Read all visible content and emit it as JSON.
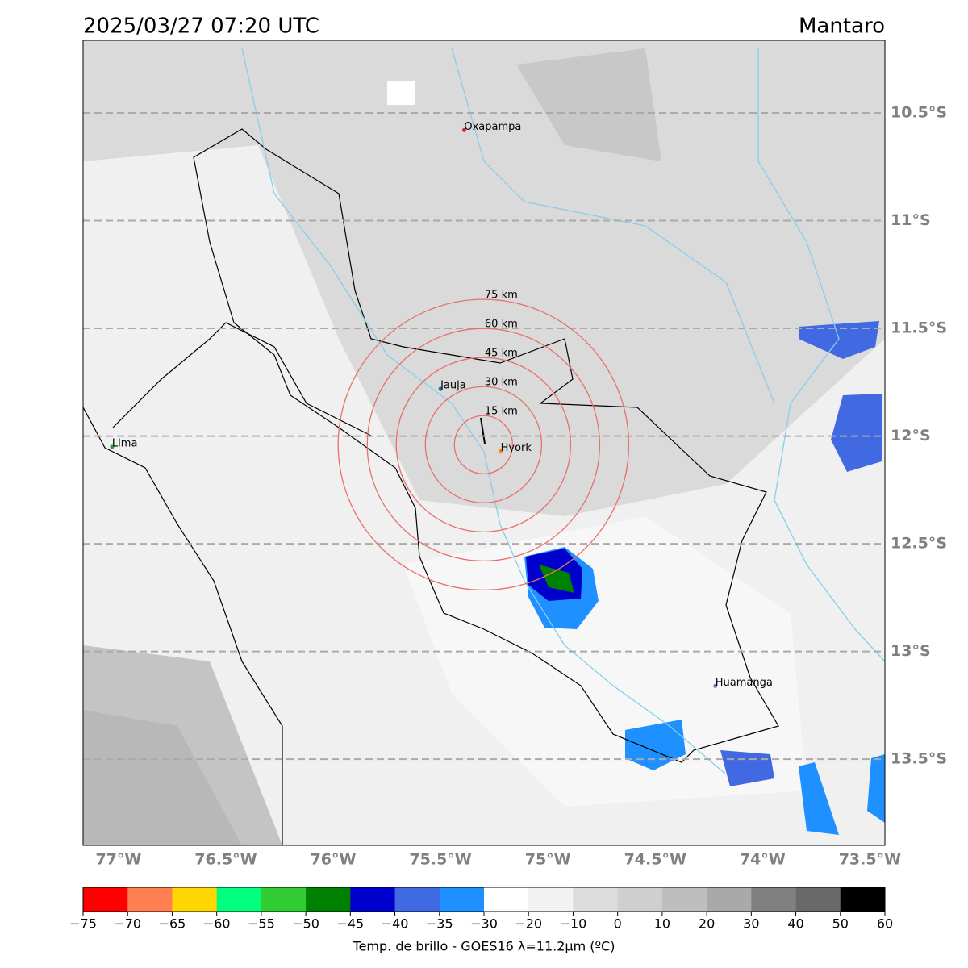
{
  "header": {
    "title": "2025/03/27 07:20 UTC",
    "region": "Mantaro"
  },
  "map": {
    "extent": {
      "lon": [
        -77.165,
        -73.43
      ],
      "lat": [
        -13.9,
        -10.163
      ]
    },
    "lat_ticks": [
      {
        "value": -10.5,
        "label": "10.5°S"
      },
      {
        "value": -11,
        "label": "11°S"
      },
      {
        "value": -11.5,
        "label": "11.5°S"
      },
      {
        "value": -12,
        "label": "12°S"
      },
      {
        "value": -12.5,
        "label": "12.5°S"
      },
      {
        "value": -13,
        "label": "13°S"
      },
      {
        "value": -13.5,
        "label": "13.5°S"
      }
    ],
    "lon_ticks": [
      {
        "value": -77,
        "label": "77°W"
      },
      {
        "value": -76.5,
        "label": "76.5°W"
      },
      {
        "value": -76,
        "label": "76°W"
      },
      {
        "value": -75.5,
        "label": "75.5°W"
      },
      {
        "value": -75,
        "label": "75°W"
      },
      {
        "value": -74.5,
        "label": "74.5°W"
      },
      {
        "value": -74,
        "label": "74°W"
      },
      {
        "value": -73.5,
        "label": "73.5°W"
      }
    ],
    "cities": [
      {
        "name": "Oxapampa",
        "lon": -75.39,
        "lat": -10.58,
        "color": "#d62728"
      },
      {
        "name": "Jauja",
        "lon": -75.5,
        "lat": -11.78,
        "color": "#1f77b4"
      },
      {
        "name": "Hyork",
        "lon": -75.22,
        "lat": -12.07,
        "color": "#ff7f0e"
      },
      {
        "name": "Lima",
        "lon": -77.03,
        "lat": -12.05,
        "color": "#2ca02c"
      },
      {
        "name": "Huamanga",
        "lon": -74.22,
        "lat": -13.16,
        "color": "#9467bd"
      }
    ],
    "ring_center": {
      "lon": -75.3,
      "lat": -12.04
    },
    "rings": [
      {
        "radius_km": 15,
        "label": "15 km"
      },
      {
        "radius_km": 30,
        "label": "30 km"
      },
      {
        "radius_km": 45,
        "label": "45 km"
      },
      {
        "radius_km": 60,
        "label": "60 km"
      },
      {
        "radius_km": 75,
        "label": "75 km"
      }
    ]
  },
  "colorbar": {
    "label": "Temp. de brillo - GOES16 λ=11.2μm (ºC)",
    "ticks": [
      {
        "value": -75,
        "label": "−75"
      },
      {
        "value": -70,
        "label": "−70"
      },
      {
        "value": -65,
        "label": "−65"
      },
      {
        "value": -60,
        "label": "−60"
      },
      {
        "value": -55,
        "label": "−55"
      },
      {
        "value": -50,
        "label": "−50"
      },
      {
        "value": -45,
        "label": "−45"
      },
      {
        "value": -40,
        "label": "−40"
      },
      {
        "value": -35,
        "label": "−35"
      },
      {
        "value": -30,
        "label": "−30"
      },
      {
        "value": -20,
        "label": "−20"
      },
      {
        "value": -10,
        "label": "−10"
      },
      0,
      10,
      20,
      30,
      40,
      50,
      60
    ],
    "colors": [
      "#ff0000",
      "#ff7f50",
      "#ffd700",
      "#00ff7f",
      "#32cd32",
      "#008000",
      "#0000cd",
      "#4169e1",
      "#1e90ff",
      "#ffffff",
      "#f2f2f2",
      "#dcdcdc",
      "#cfcfcf",
      "#bebebe",
      "#a9a9a9",
      "#808080",
      "#696969",
      "#000000"
    ]
  }
}
